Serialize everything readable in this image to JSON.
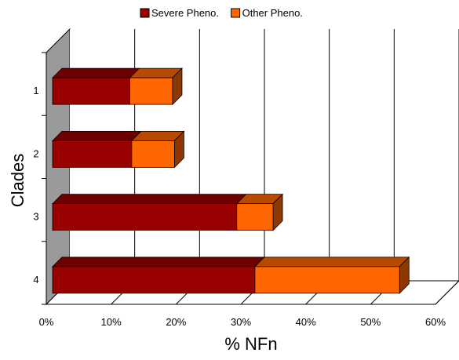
{
  "chart_data": {
    "type": "bar",
    "orientation": "horizontal",
    "stacked": true,
    "three_d": true,
    "categories": [
      "1",
      "2",
      "3",
      "4"
    ],
    "series": [
      {
        "name": "Severe Pheno.",
        "values": [
          11.9,
          12.2,
          28.4,
          31.2
        ],
        "color": "#990000"
      },
      {
        "name": "Other Pheno.",
        "values": [
          6.6,
          6.6,
          5.6,
          22.3
        ],
        "color": "#ff6600"
      }
    ],
    "xlabel": "% NFn",
    "ylabel": "Clades",
    "xlim": [
      0,
      60
    ],
    "x_ticks": [
      "0%",
      "10%",
      "20%",
      "30%",
      "40%",
      "50%",
      "60%"
    ],
    "grid": true,
    "legend_position": "top"
  }
}
